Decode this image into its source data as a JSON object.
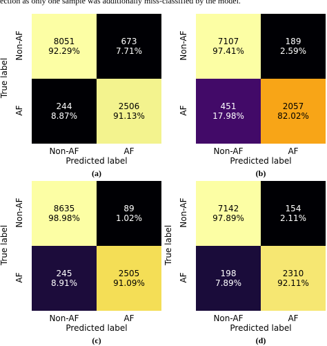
{
  "page": {
    "top_caption": "ection as only one sample was additionally miss-classified by the model."
  },
  "chart_data": [
    {
      "type": "heatmap",
      "panel_label": "(a)",
      "xlabel": "Predicted label",
      "ylabel": "True label",
      "x_categories": [
        "Non-AF",
        "AF"
      ],
      "y_categories": [
        "Non-AF",
        "AF"
      ],
      "cells": [
        [
          {
            "count": "8051",
            "pct": "92.29%",
            "color": "#fcfea4"
          },
          {
            "count": "673",
            "pct": "7.71%",
            "color": "#000004"
          }
        ],
        [
          {
            "count": "244",
            "pct": "8.87%",
            "color": "#000004"
          },
          {
            "count": "2506",
            "pct": "91.13%",
            "color": "#f3f38e"
          }
        ]
      ]
    },
    {
      "type": "heatmap",
      "panel_label": "(b)",
      "xlabel": "Predicted label",
      "ylabel": "",
      "x_categories": [
        "Non-AF",
        "AF"
      ],
      "y_categories": [
        "Non-AF",
        "AF"
      ],
      "cells": [
        [
          {
            "count": "7107",
            "pct": "97.41%",
            "color": "#fcfea4"
          },
          {
            "count": "189",
            "pct": "2.59%",
            "color": "#000004"
          }
        ],
        [
          {
            "count": "451",
            "pct": "17.98%",
            "color": "#420a68"
          },
          {
            "count": "2057",
            "pct": "82.02%",
            "color": "#f8a517"
          }
        ]
      ]
    },
    {
      "type": "heatmap",
      "panel_label": "(c)",
      "xlabel": "Predicted label",
      "ylabel": "True label",
      "x_categories": [
        "Non-AF",
        "AF"
      ],
      "y_categories": [
        "Non-AF",
        "AF"
      ],
      "cells": [
        [
          {
            "count": "8635",
            "pct": "98.98%",
            "color": "#fcfea4"
          },
          {
            "count": "89",
            "pct": "1.02%",
            "color": "#000004"
          }
        ],
        [
          {
            "count": "245",
            "pct": "8.91%",
            "color": "#1c0c3b"
          },
          {
            "count": "2505",
            "pct": "91.09%",
            "color": "#f4de56"
          }
        ]
      ]
    },
    {
      "type": "heatmap",
      "panel_label": "(d)",
      "xlabel": "Predicted label",
      "ylabel": "True label",
      "x_categories": [
        "Non-AF",
        "AF"
      ],
      "y_categories": [
        "Non-AF",
        "AF"
      ],
      "cells": [
        [
          {
            "count": "7142",
            "pct": "97.89%",
            "color": "#fcfea4"
          },
          {
            "count": "154",
            "pct": "2.11%",
            "color": "#000004"
          }
        ],
        [
          {
            "count": "198",
            "pct": "7.89%",
            "color": "#1a0c3a"
          },
          {
            "count": "2310",
            "pct": "92.11%",
            "color": "#f6e772"
          }
        ]
      ]
    }
  ]
}
